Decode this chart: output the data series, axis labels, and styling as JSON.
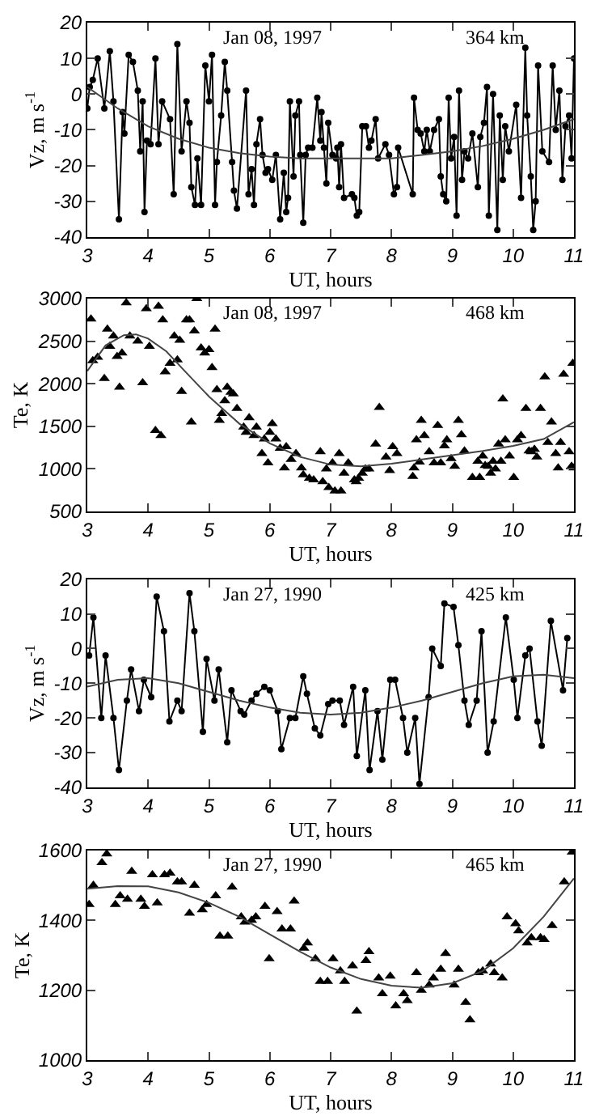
{
  "chart_data": [
    {
      "type": "line",
      "xlabel": "UT, hours",
      "ylabel": "Vz, m s$^{-1}$",
      "annotations": [
        "Jan 08, 1997",
        "364 km"
      ],
      "xlim": [
        3,
        11
      ],
      "xticks": [
        3,
        4,
        5,
        6,
        7,
        8,
        9,
        10,
        11
      ],
      "ylim": [
        -40,
        20
      ],
      "yticks": [
        -40,
        -30,
        -20,
        -10,
        0,
        10,
        20
      ],
      "series": [
        {
          "type": "line",
          "marker": "circle",
          "line_style": "solid",
          "color": "#000000",
          "x": [
            3.0,
            3.04,
            3.09,
            3.17,
            3.28,
            3.37,
            3.43,
            3.52,
            3.58,
            3.61,
            3.68,
            3.75,
            3.83,
            3.87,
            3.91,
            3.94,
            3.98,
            4.04,
            4.12,
            4.17,
            4.23,
            4.36,
            4.42,
            4.48,
            4.55,
            4.63,
            4.68,
            4.71,
            4.77,
            4.81,
            4.87,
            4.94,
            5.0,
            5.05,
            5.1,
            5.13,
            5.2,
            5.26,
            5.3,
            5.38,
            5.41,
            5.46,
            5.61,
            5.65,
            5.7,
            5.74,
            5.78,
            5.84,
            5.88,
            5.93,
            5.97,
            6.04,
            6.1,
            6.17,
            6.23,
            6.27,
            6.3,
            6.33,
            6.39,
            6.42,
            6.48,
            6.5,
            6.55,
            6.59,
            6.63,
            6.7,
            6.78,
            6.83,
            6.85,
            6.89,
            6.93,
            6.96,
            7.03,
            7.09,
            7.11,
            7.14,
            7.17,
            7.22,
            7.35,
            7.39,
            7.43,
            7.47,
            7.52,
            7.58,
            7.63,
            7.67,
            7.74,
            7.78,
            7.9,
            7.96,
            8.04,
            8.09,
            8.11,
            8.35,
            8.37,
            8.43,
            8.48,
            8.54,
            8.58,
            8.63,
            8.7,
            8.78,
            8.81,
            8.85,
            8.9,
            8.94,
            8.98,
            9.03,
            9.07,
            9.11,
            9.16,
            9.2,
            9.26,
            9.33,
            9.42,
            9.46,
            9.52,
            9.57,
            9.6,
            9.67,
            9.74,
            9.78,
            9.83,
            9.87,
            9.93,
            10.05,
            10.13,
            10.2,
            10.23,
            10.29,
            10.33,
            10.37,
            10.41,
            10.48,
            10.59,
            10.65,
            10.7,
            10.76,
            10.81,
            10.86,
            10.92,
            10.96,
            11.0
          ],
          "values": [
            -4,
            2,
            4,
            10,
            -4,
            12,
            -2,
            -35,
            -5,
            -11,
            11,
            9,
            1,
            -16,
            -2,
            -33,
            -13,
            -14,
            10,
            -14,
            -2,
            -7,
            -28,
            14,
            -16,
            -2,
            -8,
            -26,
            -31,
            -18,
            -31,
            8,
            -2,
            11,
            -31,
            -19,
            -6,
            9,
            1,
            -19,
            -27,
            -32,
            1,
            -28,
            -21,
            -31,
            -14,
            -7,
            -17,
            -22,
            -21,
            -24,
            -17,
            -35,
            -22,
            -33,
            -29,
            -2,
            -23,
            -6,
            -2,
            -17,
            -36,
            -17,
            -15,
            -15,
            -1,
            -13,
            -5,
            -15,
            -25,
            -8,
            -17,
            -18,
            -15,
            -26,
            -14,
            -29,
            -28,
            -29,
            -34,
            -33,
            -9,
            -9,
            -15,
            -13,
            -7,
            -18,
            -14,
            -17,
            -28,
            -26,
            -15,
            -28,
            -1,
            -10,
            -11,
            -16,
            -10,
            -16,
            -10,
            -7,
            -23,
            -28,
            -30,
            -1,
            -18,
            -12,
            -34,
            1,
            -24,
            -16,
            -18,
            -11,
            -26,
            -12,
            -8,
            2,
            -34,
            0,
            -38,
            -6,
            -24,
            -9,
            -16,
            -3,
            -29,
            13,
            -6,
            -23,
            -38,
            -30,
            8,
            -16,
            -19,
            8,
            -10,
            1,
            -24,
            -9,
            -6,
            -18,
            10
          ]
        },
        {
          "type": "line",
          "marker": "none",
          "line_style": "solid",
          "color": "#444444",
          "x": [
            3,
            3.5,
            4,
            4.5,
            5,
            5.5,
            6,
            6.5,
            7,
            7.5,
            8,
            8.5,
            9,
            9.5,
            10,
            10.5,
            11
          ],
          "values": [
            2,
            -4,
            -9,
            -12.5,
            -15,
            -16.5,
            -17.5,
            -18,
            -18,
            -18,
            -18,
            -17,
            -16,
            -14.5,
            -12.5,
            -10,
            -7
          ]
        }
      ]
    },
    {
      "type": "scatter",
      "xlabel": "UT, hours",
      "ylabel": "Te, K",
      "annotations": [
        "Jan 08, 1997",
        "468 km"
      ],
      "xlim": [
        3,
        11
      ],
      "xticks": [
        3,
        4,
        5,
        6,
        7,
        8,
        9,
        10,
        11
      ],
      "ylim": [
        500,
        3000
      ],
      "yticks": [
        500,
        1000,
        1500,
        2000,
        2500,
        3000
      ],
      "series": [
        {
          "type": "scatter",
          "marker": "triangle",
          "color": "#000000",
          "x": [
            3.06,
            3.09,
            3.17,
            3.28,
            3.33,
            3.37,
            3.43,
            3.49,
            3.53,
            3.57,
            3.64,
            3.7,
            3.83,
            3.91,
            3.97,
            4.02,
            4.12,
            4.17,
            4.21,
            4.24,
            4.28,
            4.36,
            4.43,
            4.48,
            4.52,
            4.55,
            4.63,
            4.68,
            4.71,
            4.76,
            4.8,
            4.87,
            4.93,
            5.0,
            5.05,
            5.1,
            5.13,
            5.17,
            5.21,
            5.26,
            5.3,
            5.36,
            5.4,
            5.46,
            5.57,
            5.61,
            5.66,
            5.74,
            5.78,
            5.87,
            5.91,
            5.97,
            6.0,
            6.04,
            6.1,
            6.17,
            6.24,
            6.27,
            6.35,
            6.43,
            6.52,
            6.55,
            6.65,
            6.72,
            6.83,
            6.87,
            6.93,
            6.97,
            7.03,
            7.07,
            7.14,
            7.17,
            7.22,
            7.29,
            7.39,
            7.42,
            7.46,
            7.52,
            7.57,
            7.63,
            7.74,
            7.8,
            7.91,
            7.97,
            8.02,
            8.09,
            8.35,
            8.37,
            8.41,
            8.46,
            8.49,
            8.54,
            8.62,
            8.7,
            8.76,
            8.81,
            8.87,
            8.91,
            8.98,
            9.04,
            9.1,
            9.15,
            9.2,
            9.33,
            9.42,
            9.45,
            9.5,
            9.54,
            9.59,
            9.63,
            9.67,
            9.71,
            9.76,
            9.8,
            9.83,
            9.87,
            9.94,
            10.01,
            10.07,
            10.13,
            10.21,
            10.26,
            10.3,
            10.35,
            10.39,
            10.45,
            10.52,
            10.57,
            10.63,
            10.7,
            10.74,
            10.78,
            10.83,
            10.92,
            10.96,
            10.98,
            11.0
          ],
          "values": [
            2760,
            2270,
            2310,
            2060,
            2640,
            2440,
            2560,
            2320,
            1960,
            2360,
            2950,
            2560,
            2500,
            2010,
            2880,
            2440,
            1450,
            2910,
            1390,
            2750,
            2140,
            2240,
            2560,
            2280,
            2510,
            1910,
            2750,
            2750,
            1550,
            2620,
            3000,
            2420,
            2360,
            2400,
            2190,
            2640,
            1930,
            1570,
            1650,
            1800,
            1960,
            1900,
            1880,
            1710,
            1490,
            1430,
            1600,
            1390,
            1490,
            1180,
            1350,
            1070,
            1430,
            1530,
            1350,
            1240,
            1010,
            1260,
            1110,
            1180,
            1010,
            930,
            890,
            870,
            1200,
            850,
            1000,
            780,
            1070,
            740,
            1180,
            740,
            950,
            1070,
            870,
            850,
            890,
            950,
            1000,
            1000,
            1290,
            1720,
            1140,
            980,
            1260,
            1180,
            910,
            1010,
            1340,
            1080,
            1570,
            1390,
            1200,
            1070,
            1510,
            1070,
            1270,
            1340,
            1120,
            1030,
            1570,
            1400,
            1210,
            900,
            1090,
            900,
            1150,
            1040,
            1030,
            950,
            1090,
            1000,
            1290,
            1090,
            1820,
            1340,
            1150,
            900,
            1340,
            1390,
            1710,
            1210,
            1200,
            1230,
            1140,
            1710,
            2080,
            1310,
            1550,
            1180,
            1010,
            1310,
            2110,
            1200,
            1030,
            2240,
            1010
          ]
        },
        {
          "type": "line",
          "marker": "none",
          "line_style": "solid",
          "color": "#444444",
          "x": [
            3,
            3.3,
            3.6,
            3.8,
            4,
            4.3,
            4.6,
            5,
            5.5,
            6,
            6.5,
            7,
            7.5,
            8,
            8.5,
            9,
            9.5,
            10,
            10.5,
            11
          ],
          "values": [
            2150,
            2450,
            2570,
            2580,
            2530,
            2380,
            2150,
            1850,
            1530,
            1300,
            1140,
            1050,
            1030,
            1060,
            1110,
            1160,
            1210,
            1270,
            1350,
            1550
          ]
        }
      ]
    },
    {
      "type": "line",
      "xlabel": "UT, hours",
      "ylabel": "Vz, m s$^{-1}$",
      "annotations": [
        "Jan 27, 1990",
        "425 km"
      ],
      "xlim": [
        3,
        11
      ],
      "xticks": [
        3,
        4,
        5,
        6,
        7,
        8,
        9,
        10,
        11
      ],
      "ylim": [
        -40,
        20
      ],
      "yticks": [
        -40,
        -30,
        -20,
        -10,
        0,
        10,
        20
      ],
      "series": [
        {
          "type": "line",
          "marker": "circle",
          "line_style": "solid",
          "color": "#000000",
          "x": [
            3.03,
            3.1,
            3.23,
            3.3,
            3.43,
            3.52,
            3.65,
            3.72,
            3.85,
            3.93,
            4.05,
            4.14,
            4.26,
            4.35,
            4.48,
            4.55,
            4.68,
            4.76,
            4.9,
            4.96,
            5.09,
            5.16,
            5.3,
            5.37,
            5.52,
            5.58,
            5.7,
            5.78,
            5.91,
            6.0,
            6.13,
            6.19,
            6.33,
            6.42,
            6.55,
            6.61,
            6.74,
            6.83,
            6.96,
            7.03,
            7.15,
            7.22,
            7.37,
            7.43,
            7.57,
            7.64,
            7.77,
            7.85,
            7.98,
            8.06,
            8.19,
            8.26,
            8.39,
            8.46,
            8.61,
            8.67,
            8.81,
            8.87,
            9.02,
            9.1,
            9.2,
            9.27,
            9.4,
            9.48,
            9.58,
            9.68,
            9.88,
            10.01,
            10.07,
            10.2,
            10.27,
            10.4,
            10.47,
            10.62,
            10.82,
            10.89
          ],
          "values": [
            -2,
            9,
            -20,
            -2,
            -20,
            -35,
            -15,
            -6,
            -18,
            -9,
            -14,
            15,
            5,
            -21,
            -15,
            -18,
            16,
            5,
            -24,
            -3,
            -15,
            -6,
            -27,
            -12,
            -18,
            -19,
            -15,
            -13,
            -11,
            -12,
            -18,
            -29,
            -20,
            -20,
            -8,
            -13,
            -23,
            -25,
            -16,
            -15,
            -15,
            -22,
            -11,
            -31,
            -12,
            -35,
            -18,
            -32,
            -9,
            -9,
            -20,
            -30,
            -20,
            -39,
            -14,
            0,
            -5,
            13,
            12,
            1,
            -15,
            -22,
            -15,
            5,
            -30,
            -21,
            9,
            -9,
            -20,
            -2,
            0,
            -21,
            -28,
            8,
            -12,
            3
          ]
        },
        {
          "type": "line",
          "marker": "none",
          "line_style": "solid",
          "color": "#444444",
          "x": [
            3,
            3.5,
            4,
            4.5,
            5,
            5.5,
            6,
            6.5,
            7,
            7.5,
            8,
            8.5,
            9,
            9.5,
            10,
            10.5,
            11
          ],
          "values": [
            -11,
            -9,
            -8.5,
            -10,
            -12.5,
            -15,
            -17,
            -18.5,
            -19,
            -18.5,
            -17,
            -15,
            -12.5,
            -10,
            -8,
            -7.5,
            -8.5
          ]
        }
      ]
    },
    {
      "type": "scatter",
      "xlabel": "UT, hours",
      "ylabel": "Te, K",
      "annotations": [
        "Jan 27, 1990",
        "465 km"
      ],
      "xlim": [
        3,
        11
      ],
      "xticks": [
        3,
        4,
        5,
        6,
        7,
        8,
        9,
        10,
        11
      ],
      "ylim": [
        1000,
        1600
      ],
      "yticks": [
        1000,
        1200,
        1400,
        1600
      ],
      "series": [
        {
          "type": "scatter",
          "marker": "triangle",
          "color": "#000000",
          "x": [
            3.03,
            3.1,
            3.24,
            3.32,
            3.46,
            3.54,
            3.66,
            3.73,
            3.88,
            3.94,
            4.07,
            4.15,
            4.27,
            4.36,
            4.48,
            4.55,
            4.68,
            4.76,
            4.89,
            4.96,
            5.11,
            5.18,
            5.31,
            5.38,
            5.53,
            5.59,
            5.7,
            5.77,
            5.92,
            5.99,
            6.12,
            6.2,
            6.34,
            6.4,
            6.56,
            6.62,
            6.75,
            6.83,
            6.95,
            7.04,
            7.16,
            7.23,
            7.36,
            7.43,
            7.58,
            7.63,
            7.79,
            7.85,
            7.98,
            8.07,
            8.2,
            8.26,
            8.41,
            8.49,
            8.62,
            8.69,
            8.81,
            8.89,
            9.03,
            9.1,
            9.22,
            9.29,
            9.43,
            9.5,
            9.63,
            9.69,
            9.82,
            9.9,
            10.04,
            10.09,
            10.23,
            10.3,
            10.45,
            10.51,
            10.64,
            10.84,
            10.97
          ],
          "values": [
            1445,
            1500,
            1565,
            1590,
            1445,
            1470,
            1460,
            1540,
            1460,
            1440,
            1530,
            1450,
            1530,
            1535,
            1510,
            1510,
            1420,
            1500,
            1430,
            1445,
            1470,
            1355,
            1355,
            1495,
            1410,
            1395,
            1400,
            1410,
            1440,
            1290,
            1425,
            1375,
            1375,
            1455,
            1320,
            1335,
            1290,
            1225,
            1225,
            1290,
            1255,
            1225,
            1270,
            1140,
            1285,
            1310,
            1235,
            1190,
            1240,
            1155,
            1190,
            1170,
            1250,
            1200,
            1215,
            1235,
            1260,
            1305,
            1215,
            1260,
            1165,
            1115,
            1250,
            1255,
            1275,
            1250,
            1235,
            1410,
            1390,
            1370,
            1335,
            1350,
            1350,
            1345,
            1385,
            1510,
            1595
          ]
        },
        {
          "type": "line",
          "marker": "none",
          "line_style": "solid",
          "color": "#444444",
          "x": [
            3,
            3.5,
            4,
            4.5,
            5,
            5.5,
            6,
            6.5,
            7,
            7.5,
            8,
            8.5,
            9,
            9.5,
            10,
            10.5,
            11
          ],
          "values": [
            1490,
            1498,
            1497,
            1480,
            1450,
            1410,
            1360,
            1310,
            1265,
            1232,
            1213,
            1207,
            1220,
            1255,
            1320,
            1410,
            1520
          ]
        }
      ]
    }
  ]
}
